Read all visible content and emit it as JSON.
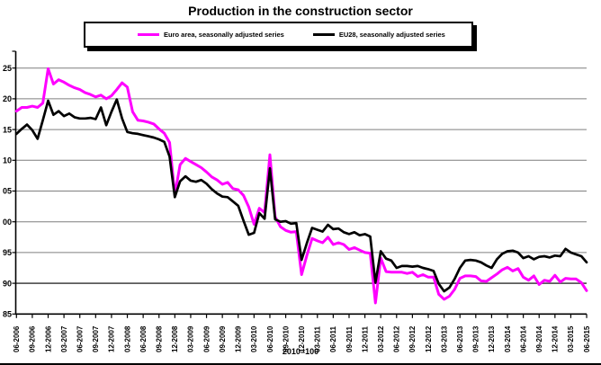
{
  "title": "Production in the construction sector",
  "footnote": "2010=100",
  "legend": {
    "items": [
      {
        "label": "Euro area, seasonally adjusted series",
        "color": "#ff00ff"
      },
      {
        "label": "EU28, seasonally adjusted series",
        "color": "#000000"
      }
    ]
  },
  "colors": {
    "euro_area_line": "#ff00ff",
    "eu28_line": "#000000",
    "gridline": "#7f7f7f",
    "axis": "#000000"
  },
  "chart_data": {
    "type": "line",
    "title": "Production in the construction sector",
    "index_note": "2010=100",
    "frequency": "monthly",
    "x_start": "2006-06",
    "x_end": "2015-06",
    "grid": true,
    "legend_position": "top",
    "ylim": [
      85,
      127.8
    ],
    "y_tick_values": [
      125,
      120,
      115,
      110,
      105,
      100,
      95,
      90,
      85
    ],
    "y_tick_labels_displayed": [
      "25",
      "20",
      "15",
      "10",
      "05",
      "00",
      "95",
      "90",
      "85"
    ],
    "x_tick_labels": [
      "06-2006",
      "09-2006",
      "12-2006",
      "03-2007",
      "06-2007",
      "09-2007",
      "12-2007",
      "03-2008",
      "06-2008",
      "09-2008",
      "12-2008",
      "03-2009",
      "06-2009",
      "09-2009",
      "12-2009",
      "03-2010",
      "06-2010",
      "09-2010",
      "12-2010",
      "03-2011",
      "06-2011",
      "09-2011",
      "12-2011",
      "03-2012",
      "06-2012",
      "09-2012",
      "12-2012",
      "03-2013",
      "06-2013",
      "09-2013",
      "12-2013",
      "03-2014",
      "06-2014",
      "09-2014",
      "12-2014",
      "03-2015",
      "06-2015"
    ],
    "months": [
      "2006-06",
      "2006-07",
      "2006-08",
      "2006-09",
      "2006-10",
      "2006-11",
      "2006-12",
      "2007-01",
      "2007-02",
      "2007-03",
      "2007-04",
      "2007-05",
      "2007-06",
      "2007-07",
      "2007-08",
      "2007-09",
      "2007-10",
      "2007-11",
      "2007-12",
      "2008-01",
      "2008-02",
      "2008-03",
      "2008-04",
      "2008-05",
      "2008-06",
      "2008-07",
      "2008-08",
      "2008-09",
      "2008-10",
      "2008-11",
      "2008-12",
      "2009-01",
      "2009-02",
      "2009-03",
      "2009-04",
      "2009-05",
      "2009-06",
      "2009-07",
      "2009-08",
      "2009-09",
      "2009-10",
      "2009-11",
      "2009-12",
      "2010-01",
      "2010-02",
      "2010-03",
      "2010-04",
      "2010-05",
      "2010-06",
      "2010-07",
      "2010-08",
      "2010-09",
      "2010-10",
      "2010-11",
      "2010-12",
      "2011-01",
      "2011-02",
      "2011-03",
      "2011-04",
      "2011-05",
      "2011-06",
      "2011-07",
      "2011-08",
      "2011-09",
      "2011-10",
      "2011-11",
      "2011-12",
      "2012-01",
      "2012-02",
      "2012-03",
      "2012-04",
      "2012-05",
      "2012-06",
      "2012-07",
      "2012-08",
      "2012-09",
      "2012-10",
      "2012-11",
      "2012-12",
      "2013-01",
      "2013-02",
      "2013-03",
      "2013-04",
      "2013-05",
      "2013-06",
      "2013-07",
      "2013-08",
      "2013-09",
      "2013-10",
      "2013-11",
      "2013-12",
      "2014-01",
      "2014-02",
      "2014-03",
      "2014-04",
      "2014-05",
      "2014-06",
      "2014-07",
      "2014-08",
      "2014-09",
      "2014-10",
      "2014-11",
      "2014-12",
      "2015-01",
      "2015-02",
      "2015-03",
      "2015-04",
      "2015-05",
      "2015-06"
    ],
    "series": [
      {
        "name": "Euro area, seasonally adjusted series",
        "color": "#ff00ff",
        "values": [
          118.0,
          118.6,
          118.6,
          118.8,
          118.6,
          119.3,
          124.9,
          122.4,
          123.1,
          122.7,
          122.2,
          121.8,
          121.5,
          121.0,
          120.7,
          120.3,
          120.6,
          120.0,
          120.5,
          121.5,
          122.6,
          121.9,
          117.9,
          116.5,
          116.4,
          116.2,
          115.9,
          115.1,
          114.4,
          112.9,
          104.4,
          109.3,
          110.3,
          109.8,
          109.3,
          108.8,
          108.1,
          107.3,
          106.8,
          106.1,
          106.4,
          105.4,
          105.2,
          104.3,
          102.4,
          99.6,
          102.2,
          101.5,
          110.9,
          100.8,
          99.2,
          98.6,
          98.3,
          98.4,
          91.4,
          94.5,
          97.3,
          96.9,
          96.6,
          97.5,
          96.3,
          96.6,
          96.3,
          95.5,
          95.8,
          95.4,
          95.0,
          94.9,
          86.8,
          94.1,
          91.9,
          91.8,
          91.8,
          91.8,
          91.6,
          91.8,
          91.1,
          91.4,
          91.0,
          91.0,
          88.2,
          87.4,
          87.9,
          89.0,
          90.8,
          91.2,
          91.2,
          91.1,
          90.4,
          90.3,
          90.9,
          91.5,
          92.2,
          92.6,
          92.0,
          92.4,
          91.0,
          90.5,
          91.2,
          89.8,
          90.5,
          90.3,
          91.3,
          90.2,
          90.8,
          90.7,
          90.7,
          90.1,
          88.8
        ]
      },
      {
        "name": "EU28, seasonally adjusted series",
        "color": "#000000",
        "values": [
          114.3,
          115.1,
          115.8,
          114.9,
          113.5,
          116.5,
          119.7,
          117.4,
          118.0,
          117.2,
          117.6,
          117.0,
          116.8,
          116.8,
          116.9,
          116.7,
          118.6,
          115.7,
          117.9,
          119.9,
          116.8,
          114.6,
          114.4,
          114.3,
          114.1,
          113.9,
          113.7,
          113.4,
          113.0,
          110.6,
          104.0,
          106.6,
          107.4,
          106.7,
          106.5,
          106.8,
          106.2,
          105.3,
          104.6,
          104.1,
          104.0,
          103.3,
          102.6,
          100.2,
          97.9,
          98.2,
          101.4,
          100.5,
          108.7,
          100.4,
          100.0,
          100.1,
          99.7,
          99.8,
          93.8,
          96.5,
          99.0,
          98.7,
          98.4,
          99.5,
          98.8,
          98.9,
          98.3,
          98.0,
          98.3,
          97.8,
          98.0,
          97.6,
          90.1,
          95.2,
          94.0,
          93.7,
          92.5,
          92.8,
          92.8,
          92.7,
          92.8,
          92.5,
          92.3,
          92.0,
          89.9,
          88.7,
          89.3,
          90.7,
          92.5,
          93.7,
          93.8,
          93.7,
          93.4,
          92.9,
          92.5,
          93.9,
          94.8,
          95.2,
          95.3,
          95.0,
          94.1,
          94.4,
          93.9,
          94.3,
          94.4,
          94.2,
          94.5,
          94.4,
          95.6,
          95.0,
          94.7,
          94.4,
          93.4
        ]
      }
    ]
  }
}
